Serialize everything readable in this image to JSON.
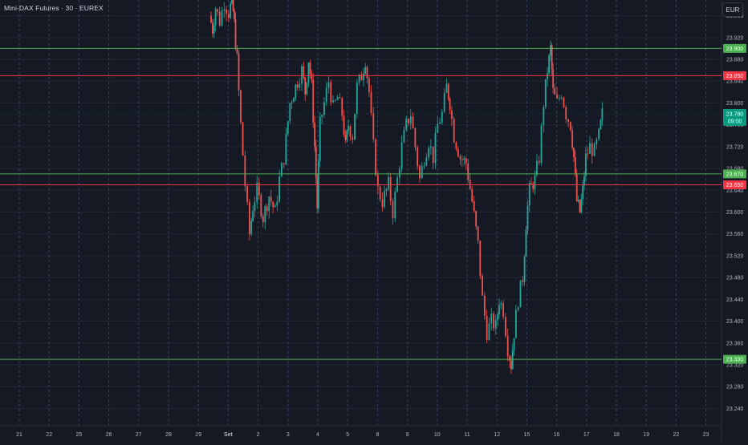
{
  "header": {
    "symbol_title": "Mini-DAX Futures · 30 · EUREX",
    "currency_button": "EUR"
  },
  "colors": {
    "background": "#151924",
    "grid": "#242733",
    "dashed_grid": "#364263",
    "up_candle": "#26a69a",
    "down_candle": "#ef5350",
    "support_line": "#4caf50",
    "resistance_line": "#f23645",
    "current_price_bg": "#089981",
    "axis_text": "#b2b5be"
  },
  "chart_data": {
    "type": "candlestick",
    "title": "Mini-DAX Futures · 30 · EUREX",
    "ylim": [
      23220,
      24000
    ],
    "y_ticks": [
      "23.240",
      "23.280",
      "23.320",
      "23.360",
      "23.400",
      "23.440",
      "23.480",
      "23.520",
      "23.560",
      "23.600",
      "23.640",
      "23.680",
      "23.720",
      "23.760",
      "23.800",
      "23.840",
      "23.880",
      "23.920",
      "23.960"
    ],
    "x_ticks": [
      "21",
      "22",
      "25",
      "26",
      "27",
      "28",
      "29",
      "Set",
      "2",
      "3",
      "4",
      "5",
      "8",
      "9",
      "10",
      "11",
      "12",
      "15",
      "16",
      "17",
      "18",
      "19",
      "22",
      "23"
    ],
    "horizontal_levels": [
      {
        "label": "23.900",
        "value": 23900,
        "kind": "support"
      },
      {
        "label": "23.850",
        "value": 23850,
        "kind": "resistance"
      },
      {
        "label": "23.670",
        "value": 23670,
        "kind": "support"
      },
      {
        "label": "23.650",
        "value": 23650,
        "kind": "resistance"
      },
      {
        "label": "23.330",
        "value": 23330,
        "kind": "support"
      }
    ],
    "current_price": {
      "label": "23.780",
      "value": 23780,
      "countdown": "09:00"
    },
    "price_path": [
      {
        "t": 6.4,
        "p": 23960
      },
      {
        "t": 6.5,
        "p": 23935
      },
      {
        "t": 6.6,
        "p": 23975
      },
      {
        "t": 6.75,
        "p": 23950
      },
      {
        "t": 6.9,
        "p": 23985
      },
      {
        "t": 7.05,
        "p": 23965
      },
      {
        "t": 7.15,
        "p": 23990
      },
      {
        "t": 7.22,
        "p": 23945
      },
      {
        "t": 7.32,
        "p": 23880
      },
      {
        "t": 7.45,
        "p": 23760
      },
      {
        "t": 7.6,
        "p": 23650
      },
      {
        "t": 7.75,
        "p": 23560
      },
      {
        "t": 7.85,
        "p": 23610
      },
      {
        "t": 8.0,
        "p": 23640
      },
      {
        "t": 8.2,
        "p": 23590
      },
      {
        "t": 8.4,
        "p": 23630
      },
      {
        "t": 8.6,
        "p": 23600
      },
      {
        "t": 8.75,
        "p": 23660
      },
      {
        "t": 8.9,
        "p": 23700
      },
      {
        "t": 9.1,
        "p": 23800
      },
      {
        "t": 9.35,
        "p": 23840
      },
      {
        "t": 9.5,
        "p": 23860
      },
      {
        "t": 9.6,
        "p": 23820
      },
      {
        "t": 9.72,
        "p": 23880
      },
      {
        "t": 9.82,
        "p": 23830
      },
      {
        "t": 9.92,
        "p": 23720
      },
      {
        "t": 10.0,
        "p": 23610
      },
      {
        "t": 10.1,
        "p": 23760
      },
      {
        "t": 10.25,
        "p": 23800
      },
      {
        "t": 10.4,
        "p": 23840
      },
      {
        "t": 10.55,
        "p": 23790
      },
      {
        "t": 10.7,
        "p": 23810
      },
      {
        "t": 10.85,
        "p": 23780
      },
      {
        "t": 10.95,
        "p": 23720
      },
      {
        "t": 11.05,
        "p": 23760
      },
      {
        "t": 11.2,
        "p": 23740
      },
      {
        "t": 11.35,
        "p": 23830
      },
      {
        "t": 11.5,
        "p": 23850
      },
      {
        "t": 11.62,
        "p": 23880
      },
      {
        "t": 11.75,
        "p": 23820
      },
      {
        "t": 11.9,
        "p": 23720
      },
      {
        "t": 12.05,
        "p": 23640
      },
      {
        "t": 12.2,
        "p": 23620
      },
      {
        "t": 12.4,
        "p": 23650
      },
      {
        "t": 12.55,
        "p": 23600
      },
      {
        "t": 12.7,
        "p": 23660
      },
      {
        "t": 12.85,
        "p": 23720
      },
      {
        "t": 13.0,
        "p": 23760
      },
      {
        "t": 13.15,
        "p": 23780
      },
      {
        "t": 13.3,
        "p": 23720
      },
      {
        "t": 13.45,
        "p": 23660
      },
      {
        "t": 13.6,
        "p": 23700
      },
      {
        "t": 13.75,
        "p": 23730
      },
      {
        "t": 13.9,
        "p": 23700
      },
      {
        "t": 14.05,
        "p": 23760
      },
      {
        "t": 14.2,
        "p": 23780
      },
      {
        "t": 14.35,
        "p": 23830
      },
      {
        "t": 14.45,
        "p": 23800
      },
      {
        "t": 14.6,
        "p": 23740
      },
      {
        "t": 14.8,
        "p": 23700
      },
      {
        "t": 15.0,
        "p": 23690
      },
      {
        "t": 15.2,
        "p": 23620
      },
      {
        "t": 15.4,
        "p": 23540
      },
      {
        "t": 15.55,
        "p": 23440
      },
      {
        "t": 15.7,
        "p": 23380
      },
      {
        "t": 15.85,
        "p": 23400
      },
      {
        "t": 16.0,
        "p": 23390
      },
      {
        "t": 16.1,
        "p": 23440
      },
      {
        "t": 16.25,
        "p": 23420
      },
      {
        "t": 16.4,
        "p": 23350
      },
      {
        "t": 16.5,
        "p": 23320
      },
      {
        "t": 16.6,
        "p": 23380
      },
      {
        "t": 16.75,
        "p": 23440
      },
      {
        "t": 16.9,
        "p": 23480
      },
      {
        "t": 17.0,
        "p": 23580
      },
      {
        "t": 17.12,
        "p": 23640
      },
      {
        "t": 17.3,
        "p": 23660
      },
      {
        "t": 17.45,
        "p": 23700
      },
      {
        "t": 17.6,
        "p": 23800
      },
      {
        "t": 17.72,
        "p": 23860
      },
      {
        "t": 17.82,
        "p": 23900
      },
      {
        "t": 17.9,
        "p": 23820
      },
      {
        "t": 18.05,
        "p": 23800
      },
      {
        "t": 18.2,
        "p": 23820
      },
      {
        "t": 18.35,
        "p": 23780
      },
      {
        "t": 18.5,
        "p": 23760
      },
      {
        "t": 18.6,
        "p": 23700
      },
      {
        "t": 18.7,
        "p": 23620
      },
      {
        "t": 18.8,
        "p": 23600
      },
      {
        "t": 18.9,
        "p": 23640
      },
      {
        "t": 19.0,
        "p": 23700
      },
      {
        "t": 19.15,
        "p": 23720
      },
      {
        "t": 19.3,
        "p": 23710
      },
      {
        "t": 19.45,
        "p": 23740
      },
      {
        "t": 19.55,
        "p": 23780
      }
    ]
  }
}
